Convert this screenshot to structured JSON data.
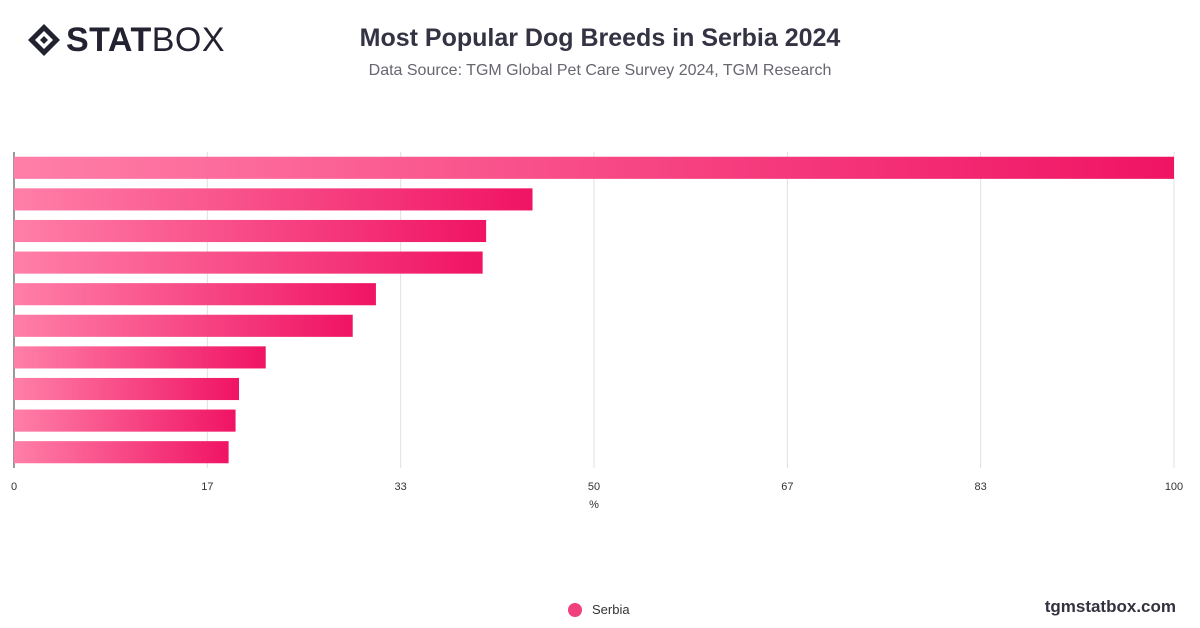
{
  "header": {
    "logo_bold": "STAT",
    "logo_light": "BOX",
    "title": "Most Popular Dog Breeds in Serbia 2024",
    "subtitle": "Data Source: TGM Global Pet Care Survey 2024, TGM Research"
  },
  "colors": {
    "bar_start": "#ff7fa8",
    "bar_end": "#f01464",
    "legend": "#f0407e"
  },
  "chart_data": {
    "type": "bar",
    "orientation": "horizontal",
    "categories": [
      "",
      "",
      "",
      "",
      "",
      "",
      "",
      "",
      "",
      ""
    ],
    "series": [
      {
        "name": "Serbia",
        "values": [
          100,
          44.7,
          40.7,
          40.4,
          31.2,
          29.2,
          21.7,
          19.4,
          19.1,
          18.5
        ]
      }
    ],
    "x_ticks": [
      "0",
      "17",
      "33",
      "50",
      "67",
      "83",
      "100"
    ],
    "xlim": [
      0,
      100
    ],
    "xlabel": "%",
    "grid": true,
    "legend_position": "bottom-center"
  },
  "legend": {
    "label": "Serbia"
  },
  "footer": {
    "brand": "tgmstatbox.com"
  }
}
